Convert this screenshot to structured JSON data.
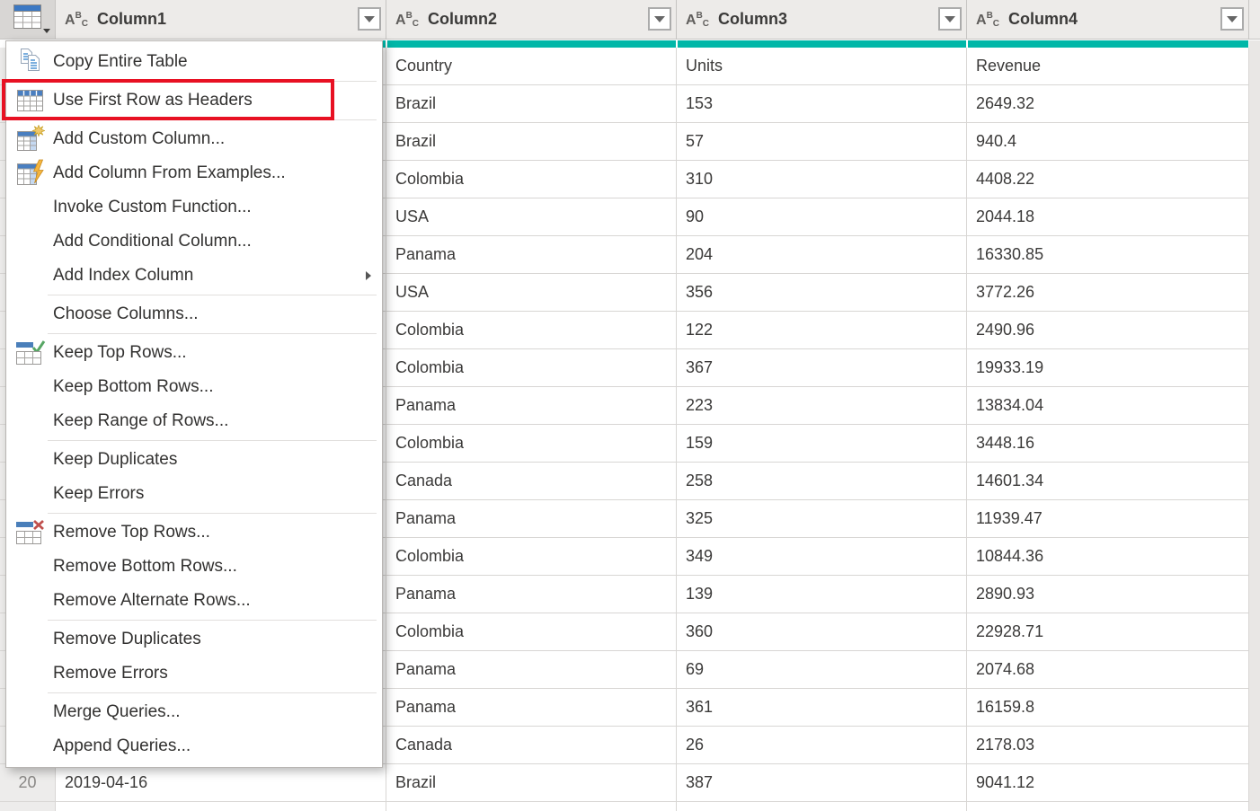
{
  "colors": {
    "quality_bar_teal": "#00B7A8",
    "annotation_red": "#E81123",
    "table_header_blue": "#3B78C3"
  },
  "header": {
    "select_all_icon": "table-select-icon",
    "filter_icon": "filter-dropdown-icon",
    "columns": [
      {
        "type": "ABC",
        "name": "Column1"
      },
      {
        "type": "ABC",
        "name": "Column2"
      },
      {
        "type": "ABC",
        "name": "Column3"
      },
      {
        "type": "ABC",
        "name": "Column4"
      }
    ]
  },
  "grid": {
    "rows": [
      {
        "num": "",
        "c1": "",
        "c2": "Country",
        "c3": "Units",
        "c4": "Revenue"
      },
      {
        "num": "",
        "c1": "",
        "c2": "Brazil",
        "c3": "153",
        "c4": "2649.32"
      },
      {
        "num": "",
        "c1": "",
        "c2": "Brazil",
        "c3": "57",
        "c4": "940.4"
      },
      {
        "num": "",
        "c1": "",
        "c2": "Colombia",
        "c3": "310",
        "c4": "4408.22"
      },
      {
        "num": "",
        "c1": "",
        "c2": "USA",
        "c3": "90",
        "c4": "2044.18"
      },
      {
        "num": "",
        "c1": "",
        "c2": "Panama",
        "c3": "204",
        "c4": "16330.85"
      },
      {
        "num": "",
        "c1": "",
        "c2": "USA",
        "c3": "356",
        "c4": "3772.26"
      },
      {
        "num": "",
        "c1": "",
        "c2": "Colombia",
        "c3": "122",
        "c4": "2490.96"
      },
      {
        "num": "",
        "c1": "",
        "c2": "Colombia",
        "c3": "367",
        "c4": "19933.19"
      },
      {
        "num": "",
        "c1": "",
        "c2": "Panama",
        "c3": "223",
        "c4": "13834.04"
      },
      {
        "num": "",
        "c1": "",
        "c2": "Colombia",
        "c3": "159",
        "c4": "3448.16"
      },
      {
        "num": "",
        "c1": "",
        "c2": "Canada",
        "c3": "258",
        "c4": "14601.34"
      },
      {
        "num": "",
        "c1": "",
        "c2": "Panama",
        "c3": "325",
        "c4": "11939.47"
      },
      {
        "num": "",
        "c1": "",
        "c2": "Colombia",
        "c3": "349",
        "c4": "10844.36"
      },
      {
        "num": "",
        "c1": "",
        "c2": "Panama",
        "c3": "139",
        "c4": "2890.93"
      },
      {
        "num": "",
        "c1": "",
        "c2": "Colombia",
        "c3": "360",
        "c4": "22928.71"
      },
      {
        "num": "",
        "c1": "",
        "c2": "Panama",
        "c3": "69",
        "c4": "2074.68"
      },
      {
        "num": "",
        "c1": "",
        "c2": "Panama",
        "c3": "361",
        "c4": "16159.8"
      },
      {
        "num": "",
        "c1": "",
        "c2": "Canada",
        "c3": "26",
        "c4": "2178.03"
      },
      {
        "num": "20",
        "c1": "2019-04-16",
        "c2": "Brazil",
        "c3": "387",
        "c4": "9041.12"
      }
    ]
  },
  "menu": {
    "items": [
      {
        "label": "Copy Entire Table",
        "icon": "copy-table-icon"
      },
      {
        "type": "separator"
      },
      {
        "label": "Use First Row as Headers",
        "icon": "use-first-row-icon",
        "highlighted": true
      },
      {
        "type": "separator"
      },
      {
        "label": "Add Custom Column...",
        "icon": "add-custom-column-icon"
      },
      {
        "label": "Add Column From Examples...",
        "icon": "add-column-examples-icon"
      },
      {
        "label": "Invoke Custom Function..."
      },
      {
        "label": "Add Conditional Column..."
      },
      {
        "label": "Add Index Column",
        "submenu": true
      },
      {
        "type": "separator"
      },
      {
        "label": "Choose Columns..."
      },
      {
        "type": "separator"
      },
      {
        "label": "Keep Top Rows...",
        "icon": "keep-top-rows-icon"
      },
      {
        "label": "Keep Bottom Rows..."
      },
      {
        "label": "Keep Range of Rows..."
      },
      {
        "type": "separator"
      },
      {
        "label": "Keep Duplicates"
      },
      {
        "label": "Keep Errors"
      },
      {
        "type": "separator"
      },
      {
        "label": "Remove Top Rows...",
        "icon": "remove-top-rows-icon"
      },
      {
        "label": "Remove Bottom Rows..."
      },
      {
        "label": "Remove Alternate Rows..."
      },
      {
        "type": "separator"
      },
      {
        "label": "Remove Duplicates"
      },
      {
        "label": "Remove Errors"
      },
      {
        "type": "separator"
      },
      {
        "label": "Merge Queries..."
      },
      {
        "label": "Append Queries..."
      }
    ]
  }
}
